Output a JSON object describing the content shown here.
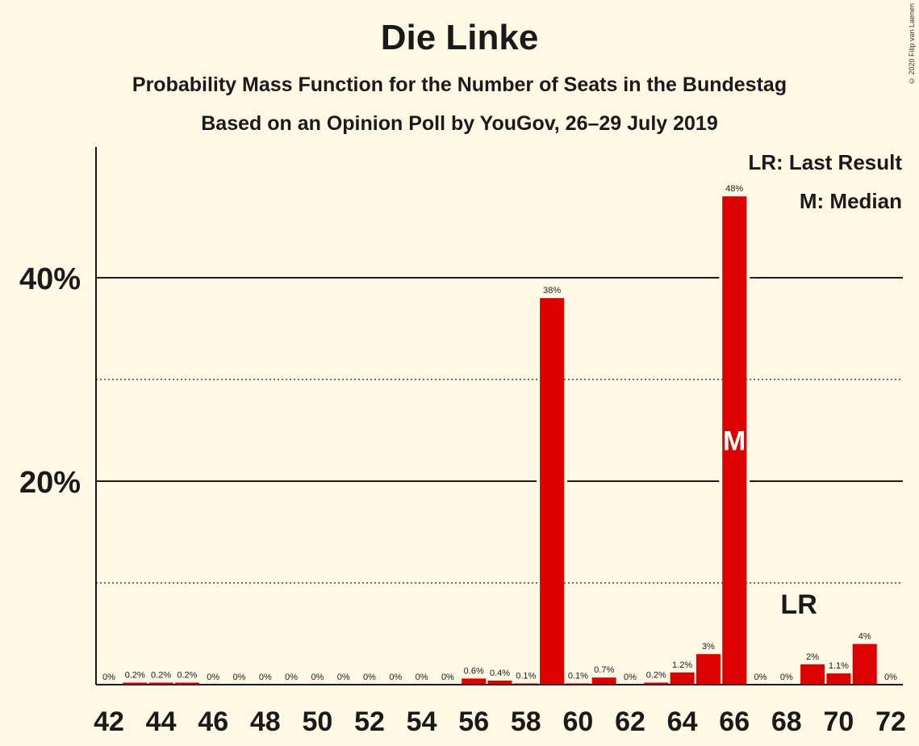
{
  "title": "Die Linke",
  "subtitle": "Probability Mass Function for the Number of Seats in the Bundestag",
  "subtitle2": "Based on an Opinion Poll by YouGov, 26–29 July 2019",
  "copyright": "© 2020 Filip van Laenen",
  "legend": {
    "last_result": "LR: Last Result",
    "median": "M: Median"
  },
  "colors": {
    "bar": "#dd0000",
    "background": "#fff8e5",
    "text": "#1a1a1a"
  },
  "chart_data": {
    "type": "bar",
    "x": [
      42,
      43,
      44,
      45,
      46,
      47,
      48,
      49,
      50,
      51,
      52,
      53,
      54,
      55,
      56,
      57,
      58,
      59,
      60,
      61,
      62,
      63,
      64,
      65,
      66,
      67,
      68,
      69,
      70,
      71,
      72
    ],
    "values": [
      0,
      0.2,
      0.2,
      0.2,
      0,
      0,
      0,
      0,
      0,
      0,
      0,
      0,
      0,
      0,
      0.6,
      0.4,
      0.1,
      38,
      0.1,
      0.7,
      0,
      0.2,
      1.2,
      3,
      48,
      0,
      0,
      2,
      1.1,
      4,
      0
    ],
    "data_labels": [
      "0%",
      "0.2%",
      "0.2%",
      "0.2%",
      "0%",
      "0%",
      "0%",
      "0%",
      "0%",
      "0%",
      "0%",
      "0%",
      "0%",
      "0%",
      "0.6%",
      "0.4%",
      "0.1%",
      "38%",
      "0.1%",
      "0.7%",
      "0%",
      "0.2%",
      "1.2%",
      "3%",
      "48%",
      "0%",
      "0%",
      "2%",
      "1.1%",
      "4%",
      "0%"
    ],
    "x_ticks": [
      "42",
      "44",
      "46",
      "48",
      "50",
      "52",
      "54",
      "56",
      "58",
      "60",
      "62",
      "64",
      "66",
      "68",
      "70",
      "72"
    ],
    "y_ticks": [
      "20%",
      "40%"
    ],
    "y_tick_values": [
      20,
      40
    ],
    "y_minor_gridlines": [
      10,
      30
    ],
    "ylim": [
      0,
      52
    ],
    "median_seat": 66,
    "median_marker": "M",
    "last_result_seat": 69,
    "last_result_marker": "LR"
  }
}
